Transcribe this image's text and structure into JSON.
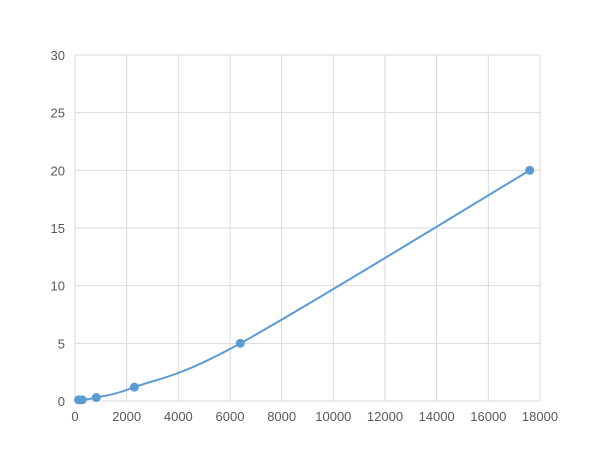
{
  "chart_data": {
    "type": "line",
    "title": "",
    "xlabel": "",
    "ylabel": "",
    "xlim": [
      0,
      18000
    ],
    "ylim": [
      0,
      30
    ],
    "xticks": [
      0,
      2000,
      4000,
      6000,
      8000,
      10000,
      12000,
      14000,
      16000,
      18000
    ],
    "yticks": [
      0,
      5,
      10,
      15,
      20,
      25,
      30
    ],
    "grid": true,
    "smooth": true,
    "color": "#5b9bd5",
    "series": [
      {
        "x": [
          137.5,
          275,
          825,
          2300,
          6400,
          17600
        ],
        "y": [
          0.1,
          0.1,
          0.3,
          1.2,
          5,
          20
        ]
      }
    ]
  }
}
